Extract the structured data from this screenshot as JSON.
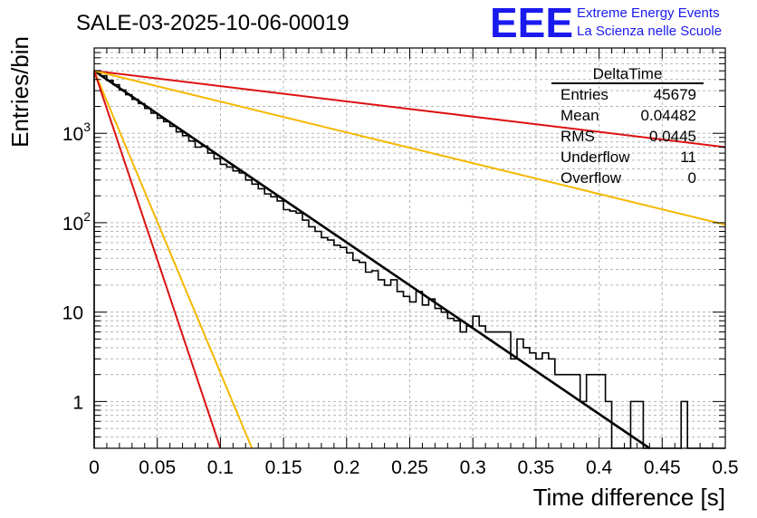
{
  "chart_data": {
    "type": "histogram",
    "title": "SALE-03-2025-10-06-00019",
    "xlabel": "Time difference [s]",
    "ylabel": "Entries/bin",
    "xlim": [
      0,
      0.5
    ],
    "ylim": [
      0.3,
      9000
    ],
    "yscale": "log",
    "grid": true,
    "x_ticks": [
      "0",
      "0.05",
      "0.1",
      "0.15",
      "0.2",
      "0.25",
      "0.3",
      "0.35",
      "0.4",
      "0.45",
      "0.5"
    ],
    "x_tick_values": [
      0,
      0.05,
      0.1,
      0.15,
      0.2,
      0.25,
      0.3,
      0.35,
      0.4,
      0.45,
      0.5
    ],
    "y_ticks": [
      {
        "value": 1,
        "base": "1",
        "exp": ""
      },
      {
        "value": 10,
        "base": "10",
        "exp": ""
      },
      {
        "value": 100,
        "base": "10",
        "exp": "2"
      },
      {
        "value": 1000,
        "base": "10",
        "exp": "3"
      }
    ],
    "bin_width": 0.005,
    "bin_counts": [
      5000,
      4400,
      3900,
      3500,
      3050,
      2700,
      2400,
      2150,
      1900,
      1680,
      1480,
      1350,
      1200,
      1040,
      940,
      820,
      700,
      720,
      600,
      520,
      450,
      420,
      380,
      360,
      300,
      270,
      240,
      210,
      195,
      175,
      140,
      135,
      128,
      107,
      90,
      80,
      68,
      64,
      56,
      53,
      46,
      38,
      36,
      28,
      29,
      23,
      20,
      23,
      17,
      15,
      13,
      17,
      12,
      14,
      11,
      10,
      8.5,
      8,
      6,
      7,
      9,
      7,
      6,
      6,
      6,
      6,
      3,
      5,
      4,
      3.5,
      3,
      3.5,
      3,
      2,
      2,
      2,
      2,
      1,
      2,
      2,
      2,
      1,
      0.1,
      0.1,
      0.1,
      1,
      1,
      0.1,
      0.1,
      0.1,
      0.1,
      0.1,
      0.1,
      1,
      0.1,
      0.1,
      0.1,
      0.1,
      0.1,
      0.1
    ],
    "fit_curves": [
      {
        "name": "fit",
        "color": "#000000",
        "x": [
          0,
          0.44
        ],
        "y": [
          5000,
          0.3
        ]
      },
      {
        "name": "upper-red",
        "color": "#dd1111",
        "x": [
          0,
          0.5
        ],
        "y": [
          5000,
          700
        ]
      },
      {
        "name": "upper-yellow",
        "color": "#f5b800",
        "x": [
          0,
          0.5
        ],
        "y": [
          5000,
          95
        ]
      },
      {
        "name": "lower-yellow",
        "color": "#f5b800",
        "x": [
          0,
          0.125
        ],
        "y": [
          5000,
          0.3
        ]
      },
      {
        "name": "lower-red",
        "color": "#dd1111",
        "x": [
          0,
          0.1
        ],
        "y": [
          5000,
          0.3
        ]
      }
    ],
    "stats_box": {
      "title": "DeltaTime",
      "rows": [
        {
          "label": "Entries",
          "value": "45679"
        },
        {
          "label": "Mean",
          "value": "0.04482"
        },
        {
          "label": "RMS",
          "value": "0.0445"
        },
        {
          "label": "Underflow",
          "value": "11"
        },
        {
          "label": "Overflow",
          "value": "0"
        }
      ]
    }
  },
  "logo": {
    "mark": "EEE",
    "line1": "Extreme Energy Events",
    "line2": "La Scienza nelle Scuole"
  },
  "colors": {
    "logo_blue": "#1a1aee",
    "grid": "#b4b4b4"
  }
}
